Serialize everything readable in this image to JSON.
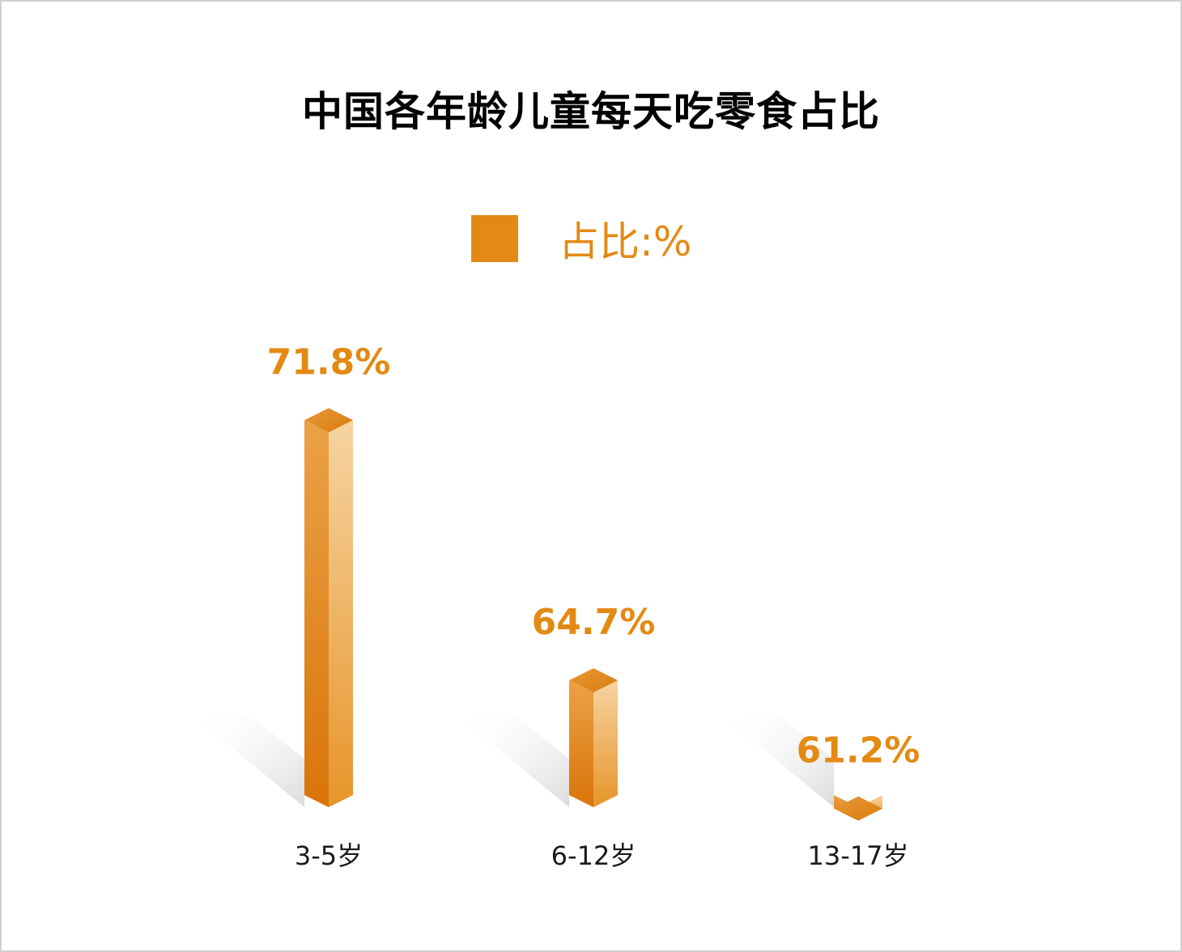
{
  "chart_data": {
    "type": "bar",
    "title": "中国各年龄儿童每天吃零食占比",
    "legend": "占比:%",
    "categories": [
      "3-5岁",
      "6-12岁",
      "13-17岁"
    ],
    "values": [
      71.8,
      64.7,
      61.2
    ],
    "value_labels": [
      "71.8%",
      "64.7%",
      "61.2%"
    ],
    "series": [
      {
        "name": "占比:%",
        "values": [
          71.8,
          64.7,
          61.2
        ]
      }
    ],
    "legend_position": "top-center",
    "grid": false,
    "colors": {
      "bar": "#e38a14",
      "label": "#e38a14",
      "title": "#000000",
      "category": "#1a1a1a"
    }
  }
}
